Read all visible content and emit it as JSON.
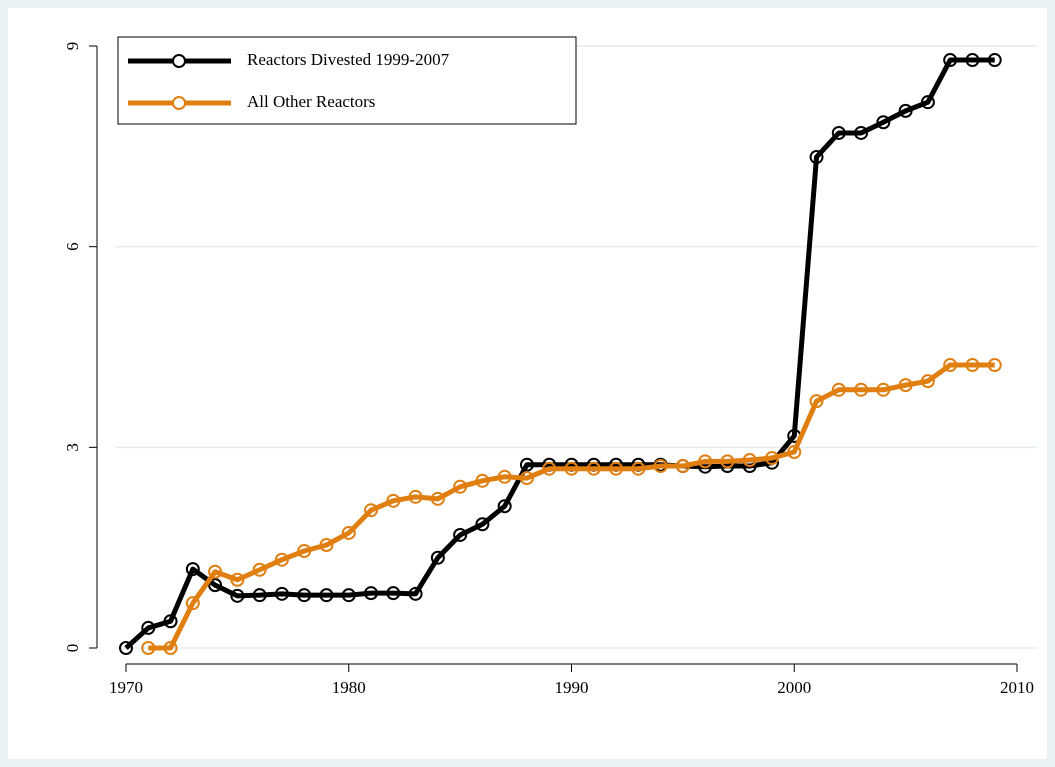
{
  "chart_data": {
    "type": "line",
    "x": [
      1970,
      1971,
      1972,
      1973,
      1974,
      1975,
      1976,
      1977,
      1978,
      1979,
      1980,
      1981,
      1982,
      1983,
      1984,
      1985,
      1986,
      1987,
      1988,
      1989,
      1990,
      1991,
      1992,
      1993,
      1994,
      1995,
      1996,
      1997,
      1998,
      1999,
      2000,
      2001,
      2002,
      2003,
      2004,
      2005,
      2006,
      2007,
      2008,
      2009
    ],
    "series": [
      {
        "name": "Reactors Divested 1999-2007",
        "color": "#000000",
        "values": [
          0,
          0.3,
          0.4,
          1.18,
          0.94,
          0.78,
          0.79,
          0.81,
          0.79,
          0.79,
          0.79,
          0.82,
          0.82,
          0.81,
          1.35,
          1.69,
          1.85,
          2.12,
          2.74,
          2.74,
          2.74,
          2.74,
          2.74,
          2.74,
          2.74,
          2.72,
          2.71,
          2.72,
          2.72,
          2.77,
          3.17,
          7.34,
          7.7,
          7.7,
          7.86,
          8.03,
          8.16,
          8.79,
          8.79,
          8.79
        ]
      },
      {
        "name": "All Other Reactors",
        "color": "#e07f10",
        "values": [
          null,
          0,
          0,
          0.67,
          1.14,
          1.02,
          1.17,
          1.32,
          1.45,
          1.54,
          1.72,
          2.06,
          2.2,
          2.26,
          2.23,
          2.41,
          2.5,
          2.56,
          2.54,
          2.68,
          2.68,
          2.68,
          2.68,
          2.68,
          2.72,
          2.72,
          2.79,
          2.79,
          2.81,
          2.84,
          2.93,
          3.69,
          3.86,
          3.86,
          3.86,
          3.93,
          3.99,
          4.23,
          4.23,
          4.23
        ]
      }
    ],
    "xlim": [
      1970,
      2010
    ],
    "xticks": [
      1970,
      1980,
      1990,
      2000,
      2010
    ],
    "ylim": [
      0,
      9
    ],
    "yticks": [
      0,
      3,
      6,
      9
    ],
    "grid": true,
    "legend": "top-left"
  }
}
